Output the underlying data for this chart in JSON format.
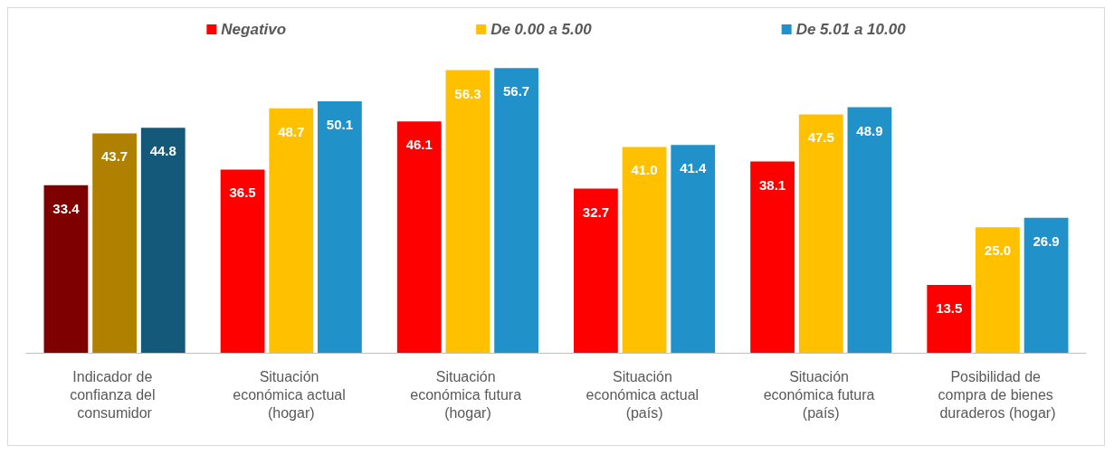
{
  "chart_data": {
    "type": "bar",
    "categories": [
      "Indicador de confianza del consumidor",
      "Situación económica actual (hogar)",
      "Situación económica futura (hogar)",
      "Situación económica actual (país)",
      "Situación económica futura (país)",
      "Posibilidad de compra de bienes duraderos (hogar)"
    ],
    "series": [
      {
        "name": "Negativo",
        "color": "#ff0000",
        "colors": [
          "#7f0000",
          "#ff0000",
          "#ff0000",
          "#ff0000",
          "#ff0000",
          "#ff0000"
        ],
        "values": [
          33.4,
          36.5,
          46.1,
          32.7,
          38.1,
          13.5
        ],
        "value_labels": [
          "33.4",
          "36.5",
          "46.1",
          "32.7",
          "38.1",
          "13.5"
        ]
      },
      {
        "name": "De 0.00 a 5.00",
        "color": "#ffc000",
        "colors": [
          "#b08000",
          "#ffc000",
          "#ffc000",
          "#ffc000",
          "#ffc000",
          "#ffc000"
        ],
        "values": [
          43.7,
          48.7,
          56.3,
          41.0,
          47.5,
          25.0
        ],
        "value_labels": [
          "43.7",
          "48.7",
          "56.3",
          "41.0",
          "47.5",
          "25.0"
        ]
      },
      {
        "name": "De 5.01 a 10.00",
        "color": "#2192c9",
        "colors": [
          "#14587a",
          "#2192c9",
          "#2192c9",
          "#2192c9",
          "#2192c9",
          "#2192c9"
        ],
        "values": [
          44.8,
          50.1,
          56.7,
          41.4,
          48.9,
          26.9
        ],
        "value_labels": [
          "44.8",
          "50.1",
          "56.7",
          "41.4",
          "48.9",
          "26.9"
        ]
      }
    ],
    "legend": "top"
  }
}
